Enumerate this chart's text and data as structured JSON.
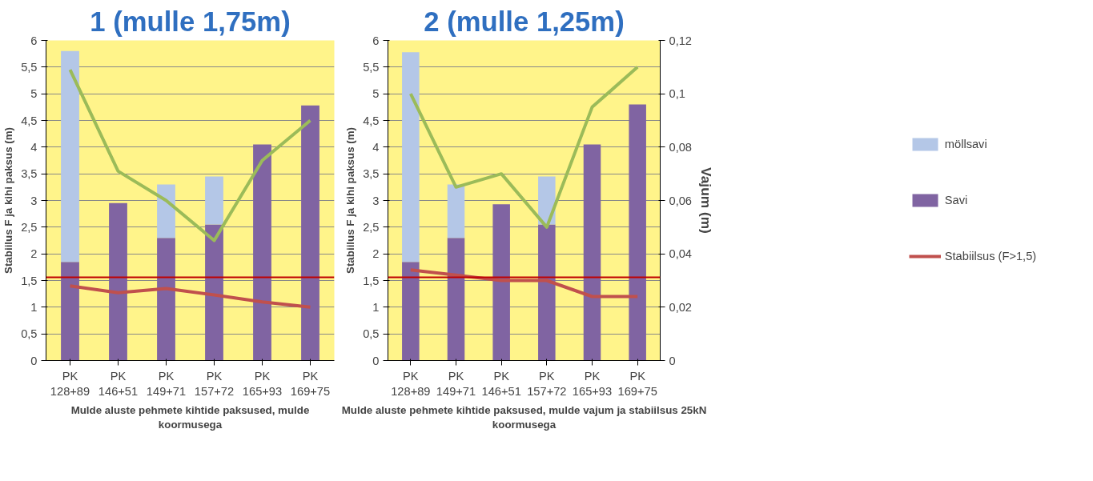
{
  "chart_data": [
    {
      "type": "bar",
      "title": "1 (mulle 1,75m)",
      "xlabel": "Mulde aluste pehmete kihtide paksused, mulde\nkoormusega",
      "ylabel": "Stabiilus F ja kihi paksus (m)",
      "stacked": true,
      "categories": [
        "PK\n128+89",
        "PK\n146+51",
        "PK\n149+71",
        "PK\n157+72",
        "PK\n165+93",
        "PK\n169+75"
      ],
      "series": [
        {
          "color": "#8064a2",
          "values": [
            1.85,
            2.95,
            2.3,
            2.55,
            4.05,
            4.78
          ]
        },
        {
          "color": "#b4c7e7",
          "values": [
            3.95,
            null,
            1.0,
            0.9,
            null,
            null
          ]
        },
        {
          "type": "line",
          "color": "#c0504d",
          "values": [
            1.4,
            1.27,
            1.35,
            1.23,
            1.1,
            1.0
          ]
        },
        {
          "type": "line",
          "axis": "y2",
          "color": "#9bbb59",
          "values": [
            0.109,
            0.071,
            0.06,
            0.045,
            0.075,
            0.09
          ]
        }
      ],
      "ylim": [
        0,
        6
      ],
      "yticks": [
        0,
        {
          "value": 0.5,
          "label": "0,5"
        },
        1,
        {
          "value": 1.5,
          "label": "1,5"
        },
        2,
        {
          "value": 2.5,
          "label": "2,5"
        },
        3,
        {
          "value": 3.5,
          "label": "3,5"
        },
        4,
        {
          "value": 4.5,
          "label": "4,5"
        },
        5,
        {
          "value": 5.5,
          "label": "5,5"
        },
        6
      ],
      "y2lim": [
        0,
        0.12
      ],
      "ref_lines": [
        {
          "axis": "y",
          "value": 1.56,
          "color": "#c00000"
        }
      ],
      "grid": "y"
    },
    {
      "type": "bar",
      "title": "2 (mulle 1,25m)",
      "xlabel": "Mulde aluste pehmete kihtide paksused, mulde vajum ja stabiilsus 25kN\nkoormusega",
      "ylabel": "Stabiilus F ja kihi paksus (m)",
      "y2label": "Vajum (m)",
      "stacked": true,
      "categories": [
        "PK\n128+89",
        "PK\n149+71",
        "PK\n146+51",
        "PK\n157+72",
        "PK\n165+93",
        "PK\n169+75"
      ],
      "series": [
        {
          "name": "Savi",
          "color": "#8064a2",
          "values": [
            1.85,
            2.3,
            2.93,
            2.55,
            4.05,
            4.8
          ]
        },
        {
          "name": "möllsavi",
          "color": "#b4c7e7",
          "values": [
            3.93,
            1.0,
            null,
            0.9,
            null,
            null
          ]
        },
        {
          "name": "Stabiilsus (F>1,5)",
          "type": "line",
          "color": "#c0504d",
          "values": [
            1.7,
            1.6,
            1.5,
            1.5,
            1.2,
            1.2
          ]
        },
        {
          "type": "line",
          "axis": "y2",
          "color": "#9bbb59",
          "values": [
            0.1,
            0.065,
            0.07,
            0.05,
            0.095,
            0.11
          ]
        }
      ],
      "ylim": [
        0,
        6
      ],
      "yticks": [
        0,
        {
          "value": 0.5,
          "label": "0,5"
        },
        1,
        {
          "value": 1.5,
          "label": "1,5"
        },
        2,
        {
          "value": 2.5,
          "label": "2,5"
        },
        3,
        {
          "value": 3.5,
          "label": "3,5"
        },
        4,
        {
          "value": 4.5,
          "label": "4,5"
        },
        5,
        {
          "value": 5.5,
          "label": "5,5"
        },
        6
      ],
      "y2lim": [
        0,
        0.12
      ],
      "y2ticks": [
        0,
        {
          "value": 0.02,
          "label": "0,02"
        },
        {
          "value": 0.04,
          "label": "0,04"
        },
        {
          "value": 0.06,
          "label": "0,06"
        },
        {
          "value": 0.08,
          "label": "0,08"
        },
        {
          "value": 0.1,
          "label": "0,1"
        },
        {
          "value": 0.12,
          "label": "0,12"
        }
      ],
      "ref_lines": [
        {
          "axis": "y",
          "value": 1.56,
          "color": "#c00000"
        }
      ],
      "grid": "y",
      "legend": "right"
    }
  ]
}
